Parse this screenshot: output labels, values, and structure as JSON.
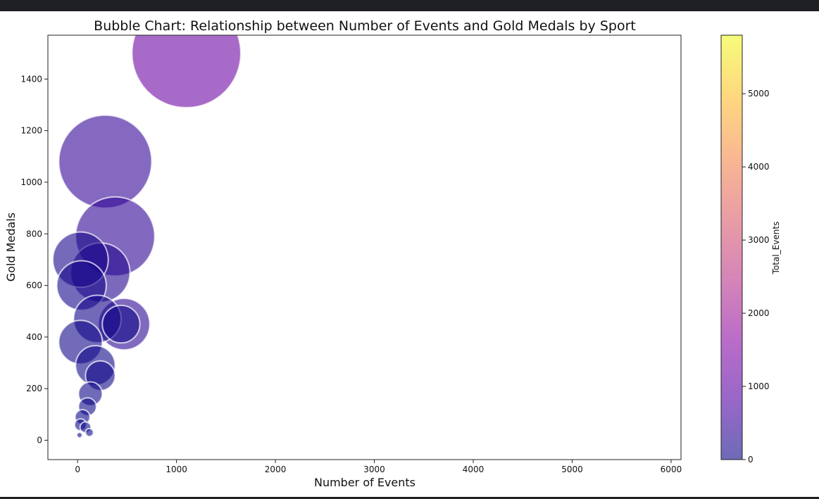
{
  "chart_data": {
    "type": "scatter",
    "subtype": "bubble",
    "title": "Bubble Chart: Relationship between Number of Events and Gold Medals by Sport",
    "xlabel": "Number of Events",
    "ylabel": "Gold Medals",
    "xlim": [
      -300,
      6100
    ],
    "ylim": [
      -75,
      1570
    ],
    "xticks": [
      0,
      1000,
      2000,
      3000,
      4000,
      5000,
      6000
    ],
    "yticks": [
      0,
      200,
      400,
      600,
      800,
      1000,
      1200,
      1400
    ],
    "colorbar": {
      "label": "Total_Events",
      "range": [
        0,
        5800
      ],
      "ticks": [
        0,
        1000,
        2000,
        3000,
        4000,
        5000
      ],
      "colormap": "plasma",
      "alpha": 0.6
    },
    "grid": false,
    "points": [
      {
        "x": 1100,
        "y": 1500,
        "size": 1100,
        "color_value": 1200
      },
      {
        "x": 280,
        "y": 1080,
        "size": 940,
        "color_value": 450
      },
      {
        "x": 380,
        "y": 790,
        "size": 800,
        "color_value": 380
      },
      {
        "x": 230,
        "y": 650,
        "size": 600,
        "color_value": 250
      },
      {
        "x": 30,
        "y": 700,
        "size": 560,
        "color_value": 120
      },
      {
        "x": 40,
        "y": 600,
        "size": 500,
        "color_value": 100
      },
      {
        "x": 470,
        "y": 450,
        "size": 520,
        "color_value": 320
      },
      {
        "x": 440,
        "y": 450,
        "size": 380,
        "color_value": 60
      },
      {
        "x": 200,
        "y": 470,
        "size": 480,
        "color_value": 80
      },
      {
        "x": 30,
        "y": 380,
        "size": 440,
        "color_value": 60
      },
      {
        "x": 180,
        "y": 290,
        "size": 400,
        "color_value": 50
      },
      {
        "x": 230,
        "y": 250,
        "size": 300,
        "color_value": 40
      },
      {
        "x": 130,
        "y": 180,
        "size": 240,
        "color_value": 30
      },
      {
        "x": 100,
        "y": 130,
        "size": 180,
        "color_value": 20
      },
      {
        "x": 50,
        "y": 90,
        "size": 150,
        "color_value": 15
      },
      {
        "x": 30,
        "y": 60,
        "size": 120,
        "color_value": 10
      },
      {
        "x": 80,
        "y": 50,
        "size": 110,
        "color_value": 10
      },
      {
        "x": 120,
        "y": 30,
        "size": 80,
        "color_value": 5
      },
      {
        "x": 20,
        "y": 20,
        "size": 55,
        "color_value": 2
      }
    ]
  }
}
